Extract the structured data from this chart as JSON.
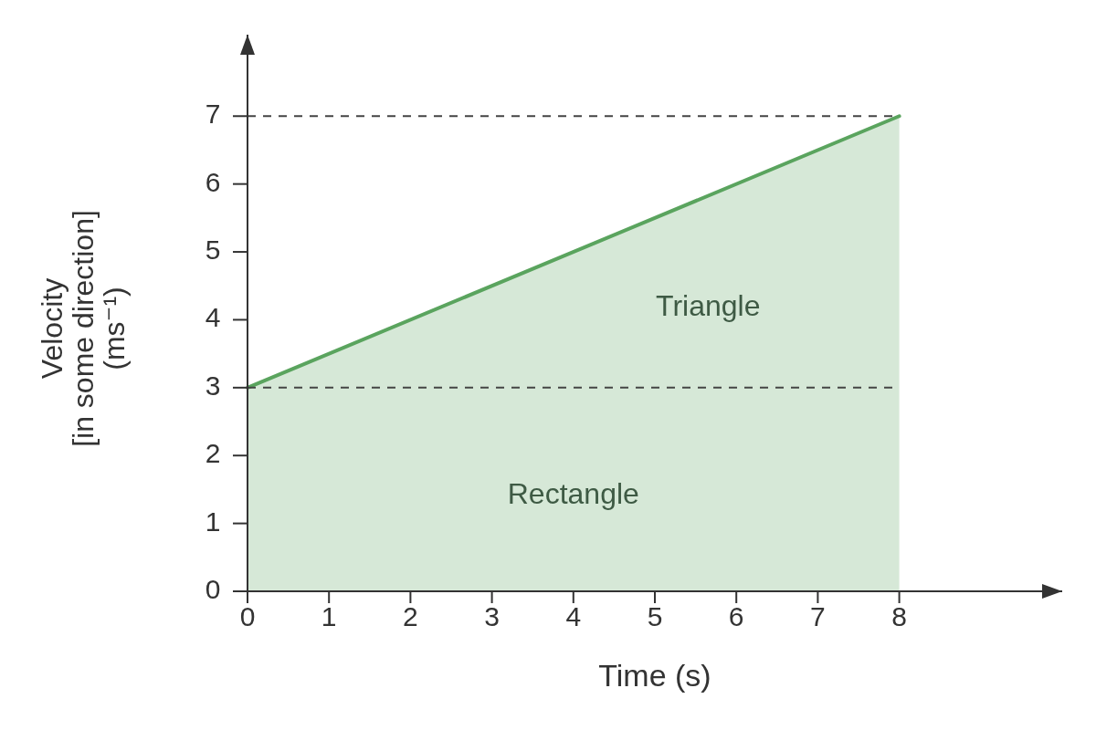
{
  "chart_data": {
    "type": "area",
    "xlabel": "Time (s)",
    "ylabel": "Velocity\n[in some direction]\n(ms⁻¹)",
    "series": [
      {
        "x": [
          0,
          8
        ],
        "values": [
          3,
          7
        ],
        "color": "#5aa45e"
      }
    ],
    "xlim": [
      0,
      10
    ],
    "ylim": [
      0,
      8.2
    ],
    "xticks": [
      0,
      1,
      2,
      3,
      4,
      5,
      6,
      7,
      8
    ],
    "yticks": [
      0,
      1,
      2,
      3,
      4,
      5,
      6,
      7
    ],
    "grid": false,
    "ref_lines": [
      {
        "axis": "y",
        "value": 7,
        "line_style": "dashed",
        "color": "#444444"
      },
      {
        "axis": "y",
        "value": 3,
        "line_style": "dashed",
        "color": "#444444"
      }
    ],
    "annotations": [
      "Triangle",
      "Rectangle"
    ]
  }
}
